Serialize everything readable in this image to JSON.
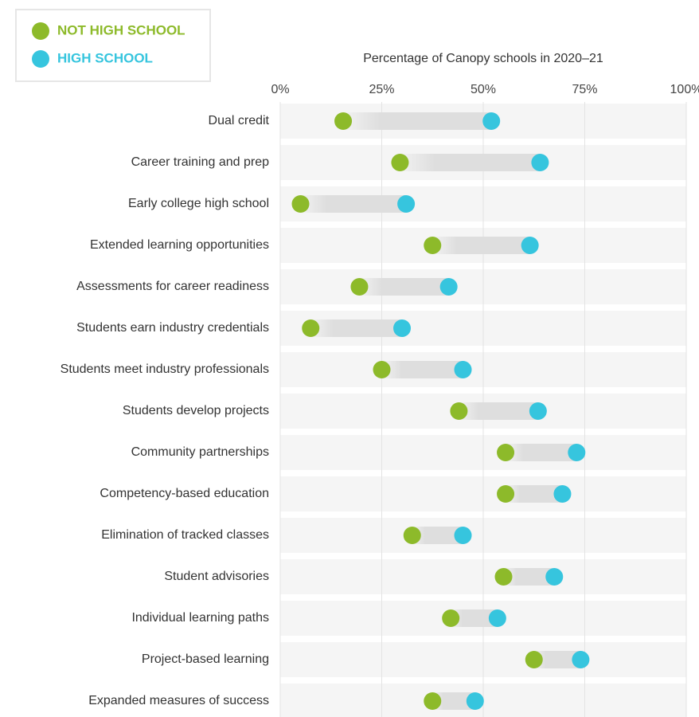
{
  "chart_data": {
    "type": "dumbbell",
    "xlabel": "Percentage of Canopy schools in 2020–21",
    "categories": [
      "Dual credit",
      "Career training and prep",
      "Early college high school",
      "Extended learning opportunities",
      "Assessments for career readiness",
      "Students earn industry credentials",
      "Students meet industry professionals",
      "Students develop projects",
      "Community partnerships",
      "Competency-based education",
      "Elimination of tracked classes",
      "Student advisories",
      "Individual learning paths",
      "Project-based learning",
      "Expanded measures of success"
    ],
    "series": [
      {
        "name": "NOT HIGH SCHOOL",
        "color": "#8dba2a",
        "values": [
          15.5,
          29.5,
          5,
          37.5,
          19.5,
          7.5,
          25,
          44,
          55.5,
          55.5,
          32.5,
          55,
          42,
          62.5,
          37.5
        ]
      },
      {
        "name": "HIGH SCHOOL",
        "color": "#36c5de",
        "values": [
          52,
          64,
          31,
          61.5,
          41.5,
          30,
          45,
          63.5,
          73,
          69.5,
          45,
          67.5,
          53.5,
          74,
          48
        ]
      }
    ],
    "xlim": [
      0,
      100
    ],
    "xticks": [
      {
        "value": 0,
        "label": "0%"
      },
      {
        "value": 25,
        "label": "25%"
      },
      {
        "value": 50,
        "label": "50%"
      },
      {
        "value": 75,
        "label": "75%"
      },
      {
        "value": 100,
        "label": "100%"
      }
    ],
    "grid": true
  }
}
